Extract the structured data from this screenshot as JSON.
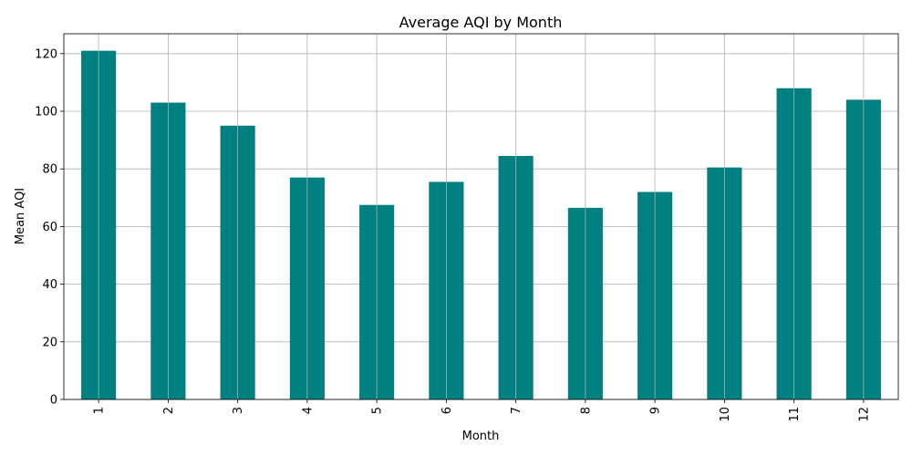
{
  "chart_data": {
    "type": "bar",
    "title": "Average AQI by Month",
    "xlabel": "Month",
    "ylabel": "Mean AQI",
    "categories": [
      "1",
      "2",
      "3",
      "4",
      "5",
      "6",
      "7",
      "8",
      "9",
      "10",
      "11",
      "12"
    ],
    "values": [
      121,
      103,
      95,
      77,
      67.5,
      75.5,
      84.5,
      66.5,
      72,
      80.5,
      108,
      104
    ],
    "ylim": [
      0,
      126.9
    ],
    "yticks": [
      0,
      20,
      40,
      60,
      80,
      100,
      120
    ],
    "ytick_labels": [
      "0",
      "20",
      "40",
      "60",
      "80",
      "100",
      "120"
    ],
    "grid": true,
    "bar_color": "#008080",
    "xtick_rotation": "vertical"
  }
}
